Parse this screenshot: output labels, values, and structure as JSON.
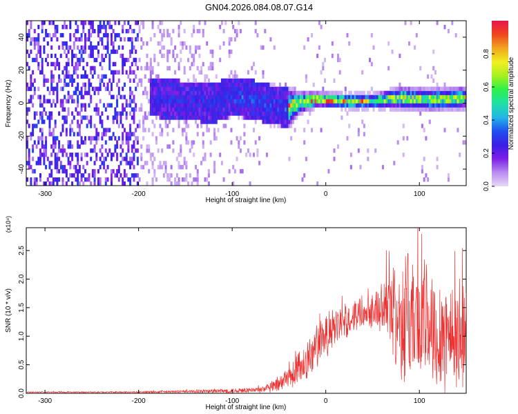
{
  "title": "GN04.2026.084.08.07.G14",
  "chart_data": [
    {
      "type": "heatmap",
      "xlabel": "Height of straight line (km)",
      "ylabel": "Frequency (Hz)",
      "xlim": [
        -320,
        150
      ],
      "ylim": [
        -50,
        50
      ],
      "xticks": [
        -300,
        -200,
        -100,
        0,
        100
      ],
      "xtick_labels": [
        "-300",
        "-200",
        "-100",
        "0",
        "100"
      ],
      "yticks": [
        -40,
        -20,
        0,
        20,
        40
      ],
      "ytick_labels": [
        "-40",
        "-20",
        "0",
        "20",
        "40"
      ],
      "colorbar": {
        "label": "Normalized spectral amplitude",
        "range": [
          0,
          1
        ],
        "ticks": [
          0.0,
          0.2,
          0.4,
          0.6,
          0.8
        ],
        "tick_labels": [
          "0.0",
          "0.2",
          "0.4",
          "0.6",
          "0.8"
        ],
        "stops": [
          "#e7d8f6",
          "#b98cf0",
          "#7d1fe6",
          "#3a1fe6",
          "#1f4ff0",
          "#23b6e6",
          "#1fe0a6",
          "#2cf04a",
          "#a6f01f",
          "#f0f01f",
          "#f0a61f",
          "#f0461f",
          "#e8144a"
        ]
      },
      "ridge": [
        {
          "x": -180,
          "y": 2,
          "w": 3
        },
        {
          "x": -150,
          "y": 0,
          "w": 4
        },
        {
          "x": -120,
          "y": -1,
          "w": 5
        },
        {
          "x": -100,
          "y": 3,
          "w": 6
        },
        {
          "x": -80,
          "y": 1,
          "w": 5
        },
        {
          "x": -60,
          "y": -2,
          "w": 6
        },
        {
          "x": -40,
          "y": -4,
          "w": 5
        },
        {
          "x": -30,
          "y": -1,
          "w": 3
        },
        {
          "x": -10,
          "y": 1,
          "w": 2
        },
        {
          "x": 20,
          "y": 0,
          "w": 2
        },
        {
          "x": 50,
          "y": 0,
          "w": 2
        },
        {
          "x": 80,
          "y": 2,
          "w": 3
        },
        {
          "x": 110,
          "y": 1,
          "w": 3
        },
        {
          "x": 150,
          "y": 2,
          "w": 3
        }
      ]
    },
    {
      "type": "line",
      "xlabel": "Height of straight line (km)",
      "ylabel": "SNR (10 * v/v)",
      "y_multiplier": "(x10⁴)",
      "color": "#ee3030",
      "xlim": [
        -320,
        150
      ],
      "ylim": [
        0,
        2.9
      ],
      "xticks": [
        -300,
        -200,
        -100,
        0,
        100
      ],
      "xtick_labels": [
        "-300",
        "-200",
        "-100",
        "0",
        "100"
      ],
      "yticks": [
        0.0,
        0.5,
        1.0,
        1.5,
        2.0,
        2.5
      ],
      "ytick_labels": [
        "0.0",
        "0.5",
        "1.0",
        "1.5",
        "2.0",
        "2.5"
      ],
      "envelope": {
        "x": [
          -320,
          -200,
          -150,
          -110,
          -90,
          -70,
          -50,
          -40,
          -30,
          -20,
          -10,
          0,
          20,
          40,
          60,
          70,
          80,
          90,
          100,
          110,
          120,
          130,
          140,
          150
        ],
        "base": [
          0.02,
          0.02,
          0.03,
          0.04,
          0.05,
          0.06,
          0.14,
          0.25,
          0.4,
          0.6,
          0.8,
          1.0,
          1.25,
          1.45,
          1.5,
          1.45,
          1.3,
          1.35,
          1.3,
          1.2,
          1.1,
          1.05,
          1.0,
          1.0
        ],
        "amp": [
          0.01,
          0.015,
          0.03,
          0.05,
          0.05,
          0.06,
          0.15,
          0.25,
          0.35,
          0.45,
          0.45,
          0.45,
          0.35,
          0.3,
          0.45,
          0.9,
          1.2,
          1.3,
          1.3,
          1.2,
          1.2,
          1.15,
          1.1,
          1.1
        ]
      }
    }
  ]
}
